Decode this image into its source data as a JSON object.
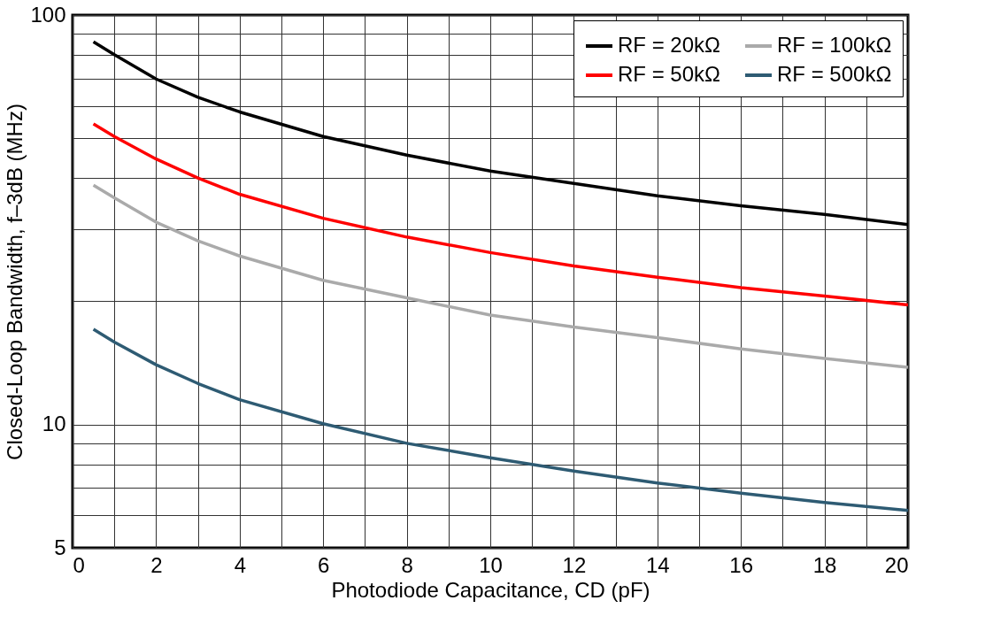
{
  "chart_data": {
    "type": "line",
    "xlabel": "Photodiode Capacitance, CD (pF)",
    "ylabel": "Closed-Loop Bandwidth, f–3dB (MHz)",
    "x": [
      0.5,
      1,
      2,
      3,
      4,
      6,
      8,
      10,
      12,
      14,
      16,
      18,
      20
    ],
    "series": [
      {
        "name": "RF = 20kΩ",
        "color": "#000000",
        "values": [
          86,
          80,
          69.8,
          63,
          58,
          50.5,
          45.5,
          41.6,
          38.8,
          36.2,
          34.2,
          32.6,
          30.8
        ]
      },
      {
        "name": "RF = 50kΩ",
        "color": "#ff0000",
        "values": [
          54.2,
          50.5,
          44.5,
          40,
          36.5,
          31.9,
          28.7,
          26.3,
          24.4,
          22.9,
          21.6,
          20.6,
          19.6
        ]
      },
      {
        "name": "RF = 100kΩ",
        "color": "#aaaaaa",
        "values": [
          38.4,
          35.8,
          31.2,
          28.1,
          25.8,
          22.5,
          20.4,
          18.5,
          17.3,
          16.3,
          15.3,
          14.5,
          13.8
        ]
      },
      {
        "name": "RF = 500kΩ",
        "color": "#2e5b73",
        "values": [
          17.1,
          15.9,
          14.0,
          12.6,
          11.5,
          10.05,
          9.0,
          8.3,
          7.7,
          7.2,
          6.8,
          6.45,
          6.17
        ]
      }
    ],
    "log": "y",
    "xlim": [
      0,
      20
    ],
    "xticks": [
      0,
      {
        "value": 1,
        "label": null
      },
      2,
      {
        "value": 3,
        "label": null
      },
      4,
      {
        "value": 5,
        "label": null
      },
      6,
      {
        "value": 7,
        "label": null
      },
      8,
      {
        "value": 9,
        "label": null
      },
      10,
      {
        "value": 11,
        "label": null
      },
      12,
      {
        "value": 13,
        "label": null
      },
      14,
      {
        "value": 15,
        "label": null
      },
      16,
      {
        "value": 17,
        "label": null
      },
      18,
      {
        "value": 19,
        "label": null
      },
      20
    ],
    "ylim": [
      5,
      100
    ],
    "yticks": [
      5,
      {
        "value": 6,
        "label": null
      },
      {
        "value": 7,
        "label": null
      },
      {
        "value": 8,
        "label": null
      },
      {
        "value": 9,
        "label": null
      },
      10,
      {
        "value": 20,
        "label": null
      },
      {
        "value": 30,
        "label": null
      },
      {
        "value": 40,
        "label": null
      },
      {
        "value": 50,
        "label": null
      },
      {
        "value": 60,
        "label": null
      },
      {
        "value": 70,
        "label": null
      },
      {
        "value": 80,
        "label": null
      },
      {
        "value": 90,
        "label": null
      },
      100
    ],
    "grid": true,
    "legend": "top right",
    "marker": "none",
    "line_style": "solid"
  }
}
